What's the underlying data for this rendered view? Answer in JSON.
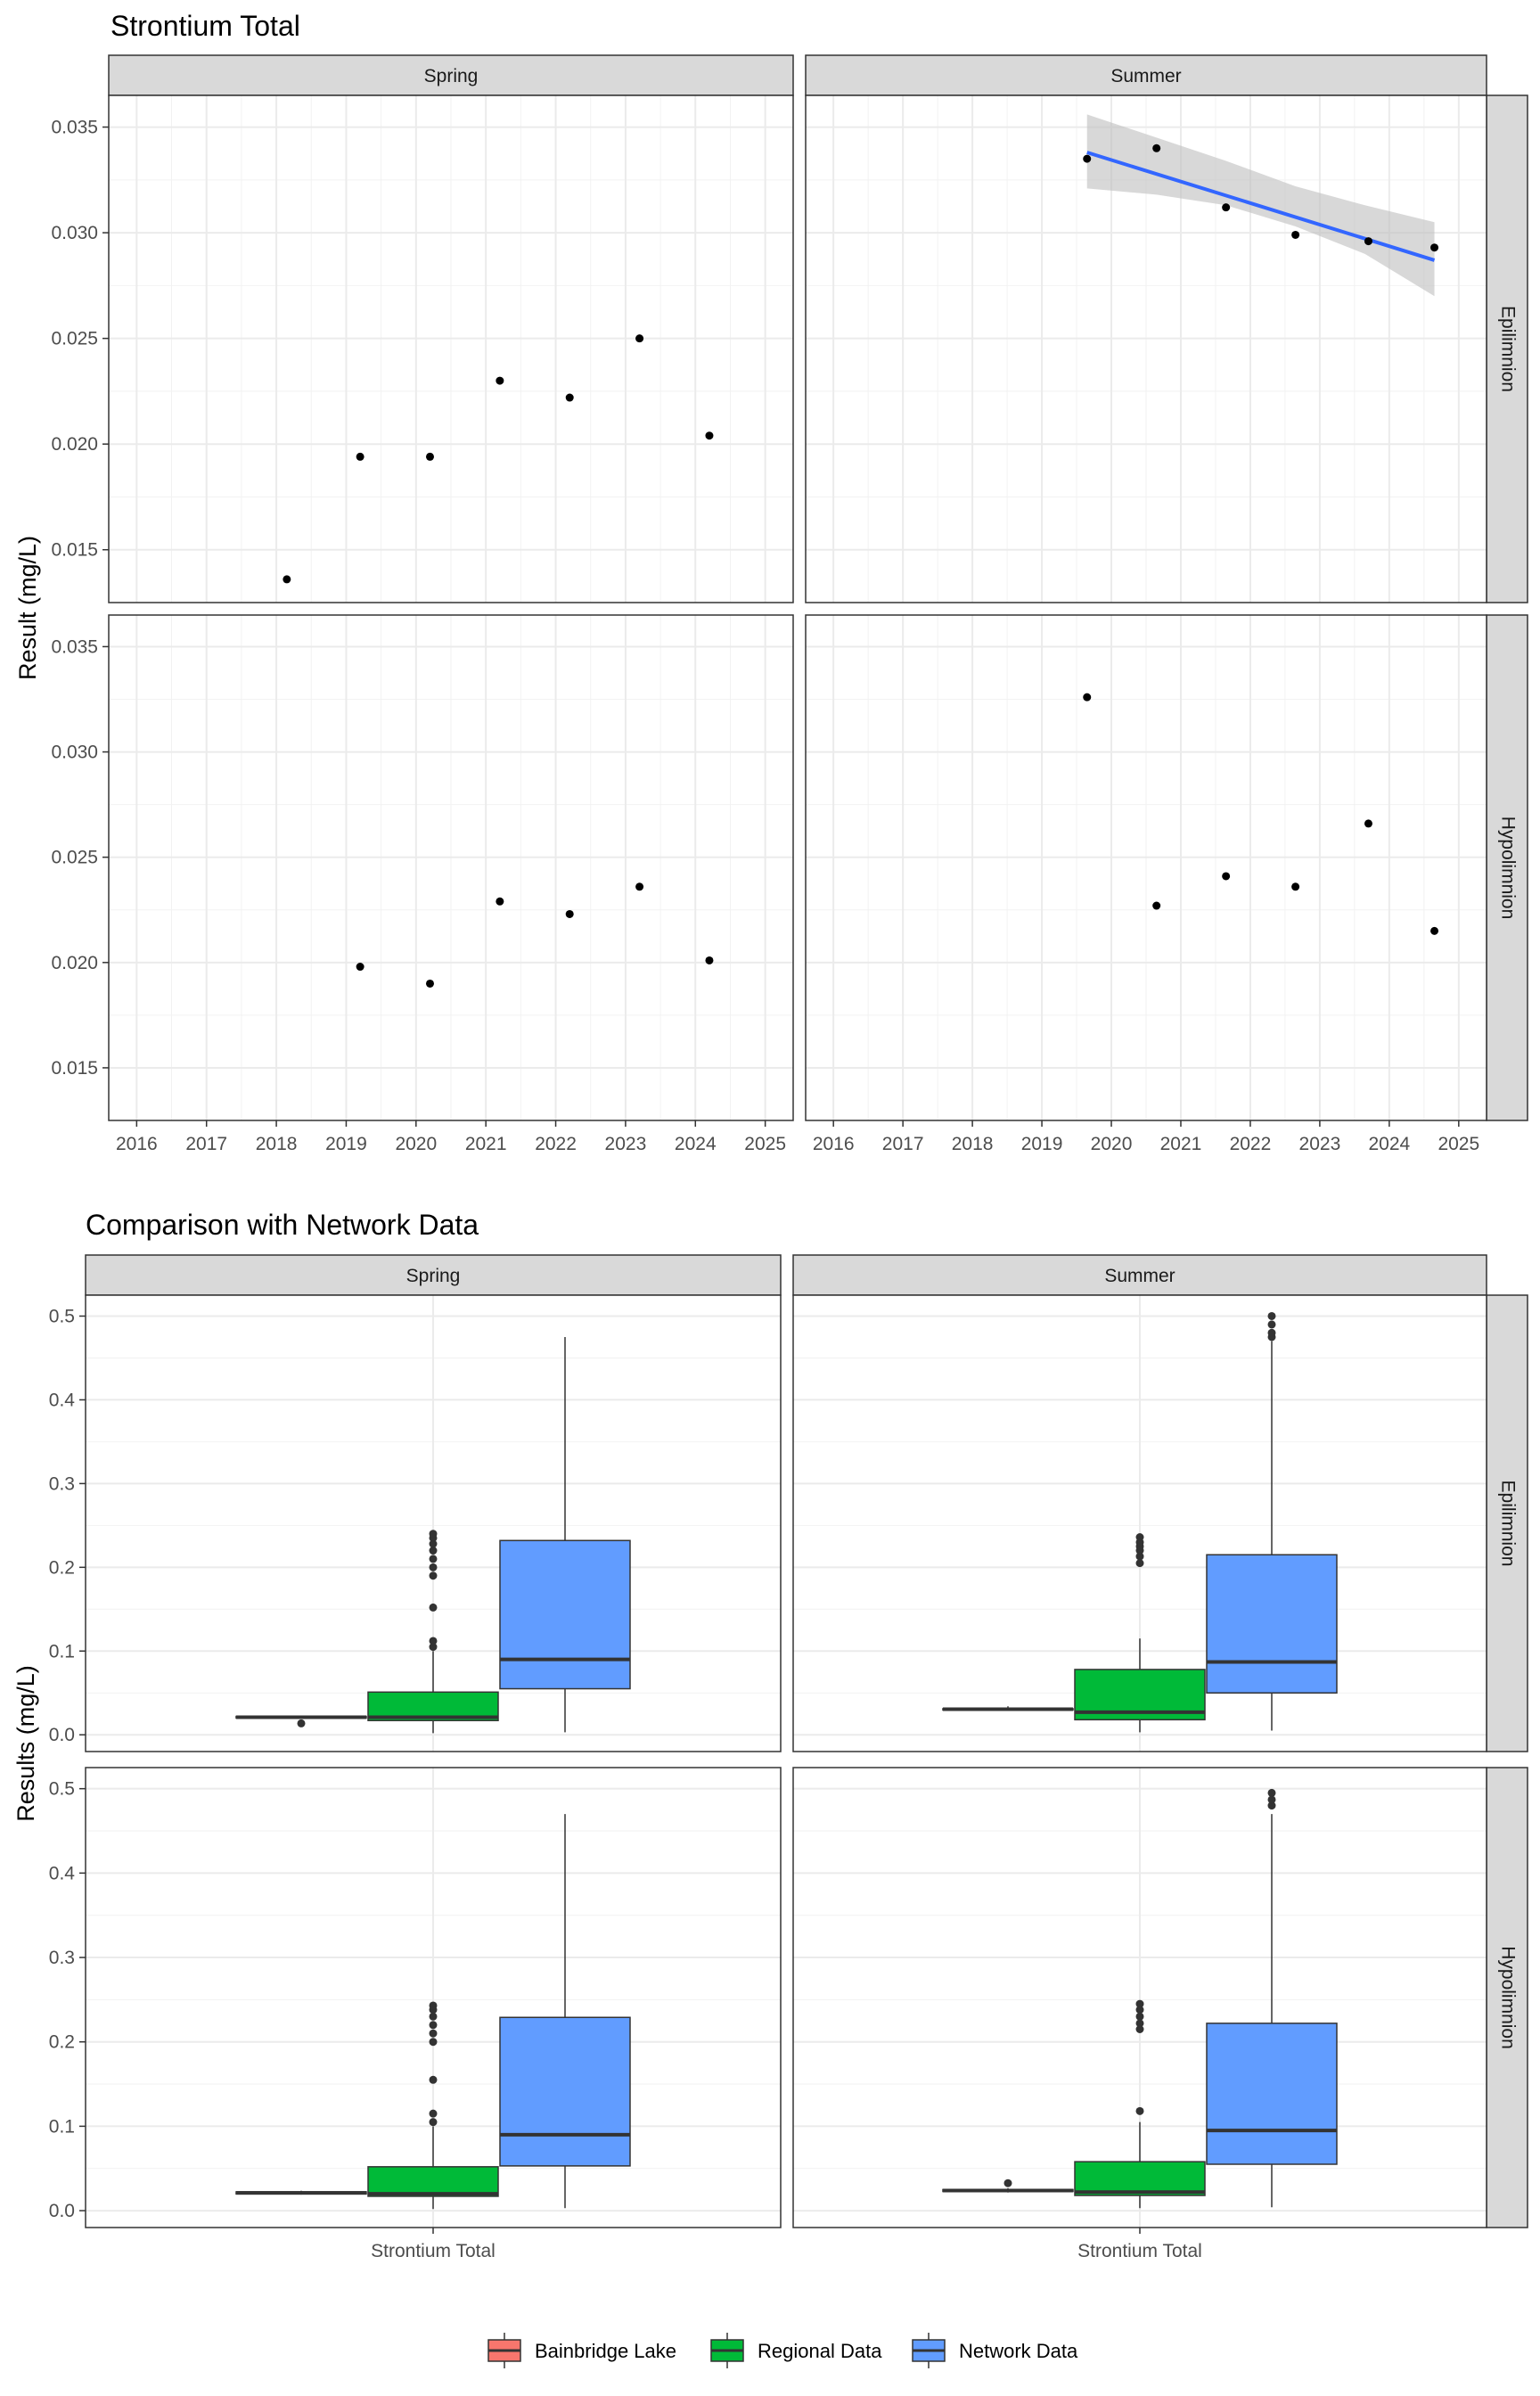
{
  "chart_data": [
    {
      "type": "scatter",
      "title": "Strontium Total",
      "ylabel": "Result (mg/L)",
      "xlabel": "",
      "columns": [
        "Spring",
        "Summer"
      ],
      "rows": [
        "Epilimnion",
        "Hypolimnion"
      ],
      "x_ticks": [
        "2016",
        "2017",
        "2018",
        "2019",
        "2020",
        "2021",
        "2022",
        "2023",
        "2024",
        "2025"
      ],
      "y_ticks": [
        "0.015",
        "0.020",
        "0.025",
        "0.030",
        "0.035"
      ],
      "xlim": [
        2015.6,
        2025.4
      ],
      "ylim": [
        0.0125,
        0.0365
      ],
      "grid": true,
      "panels": [
        {
          "column": "Spring",
          "row": "Epilimnion",
          "points": [
            [
              2018.15,
              0.0136
            ],
            [
              2019.2,
              0.0194
            ],
            [
              2020.2,
              0.0194
            ],
            [
              2021.2,
              0.023
            ],
            [
              2022.2,
              0.0222
            ],
            [
              2023.2,
              0.025
            ],
            [
              2024.2,
              0.0204
            ]
          ]
        },
        {
          "column": "Summer",
          "row": "Epilimnion",
          "points": [
            [
              2019.65,
              0.0335
            ],
            [
              2020.65,
              0.034
            ],
            [
              2021.65,
              0.0312
            ],
            [
              2022.65,
              0.0299
            ],
            [
              2023.7,
              0.0296
            ],
            [
              2024.65,
              0.0293
            ]
          ],
          "trend": {
            "x": [
              2019.65,
              2024.65
            ],
            "y": [
              0.0338,
              0.0287
            ],
            "ci_upper": [
              [
                2019.65,
                0.0356
              ],
              [
                2020.65,
                0.0345
              ],
              [
                2021.65,
                0.0334
              ],
              [
                2022.65,
                0.0322
              ],
              [
                2023.65,
                0.0313
              ],
              [
                2024.65,
                0.0305
              ]
            ],
            "ci_lower": [
              [
                2019.65,
                0.0321
              ],
              [
                2020.65,
                0.0318
              ],
              [
                2021.65,
                0.0313
              ],
              [
                2022.65,
                0.0303
              ],
              [
                2023.65,
                0.029
              ],
              [
                2024.65,
                0.027
              ]
            ],
            "color": "#3366FF",
            "band_color": "#BEBEBE"
          }
        },
        {
          "column": "Spring",
          "row": "Hypolimnion",
          "points": [
            [
              2019.2,
              0.0198
            ],
            [
              2020.2,
              0.019
            ],
            [
              2021.2,
              0.0229
            ],
            [
              2022.2,
              0.0223
            ],
            [
              2023.2,
              0.0236
            ],
            [
              2024.2,
              0.0201
            ]
          ]
        },
        {
          "column": "Summer",
          "row": "Hypolimnion",
          "points": [
            [
              2019.65,
              0.0326
            ],
            [
              2020.65,
              0.0227
            ],
            [
              2021.65,
              0.0241
            ],
            [
              2022.65,
              0.0236
            ],
            [
              2023.7,
              0.0266
            ],
            [
              2024.65,
              0.0215
            ]
          ]
        }
      ]
    },
    {
      "type": "box",
      "title": "Comparison with Network Data",
      "ylabel": "Results (mg/L)",
      "columns": [
        "Spring",
        "Summer"
      ],
      "rows": [
        "Epilimnion",
        "Hypolimnion"
      ],
      "category": "Strontium Total",
      "y_ticks": [
        "0.0",
        "0.1",
        "0.2",
        "0.3",
        "0.4",
        "0.5"
      ],
      "ylim": [
        -0.02,
        0.525
      ],
      "grid": true,
      "legend": {
        "position": "bottom",
        "entries": [
          {
            "label": "Bainbridge Lake",
            "color": "#F8766D"
          },
          {
            "label": "Regional Data",
            "color": "#00BA38"
          },
          {
            "label": "Network Data",
            "color": "#619CFF"
          }
        ]
      },
      "panels": [
        {
          "column": "Spring",
          "row": "Epilimnion",
          "boxes": [
            {
              "series": "Bainbridge Lake",
              "whisker_low": 0.02,
              "q1": 0.02,
              "median": 0.021,
              "q3": 0.022,
              "whisker_high": 0.023,
              "outliers": [
                0.0136
              ]
            },
            {
              "series": "Regional Data",
              "whisker_low": 0.002,
              "q1": 0.017,
              "median": 0.021,
              "q3": 0.051,
              "whisker_high": 0.1,
              "outliers": [
                0.105,
                0.112,
                0.152,
                0.19,
                0.2,
                0.21,
                0.22,
                0.228,
                0.235,
                0.24
              ]
            },
            {
              "series": "Network Data",
              "whisker_low": 0.003,
              "q1": 0.055,
              "median": 0.09,
              "q3": 0.232,
              "whisker_high": 0.475,
              "outliers": []
            }
          ]
        },
        {
          "column": "Summer",
          "row": "Epilimnion",
          "boxes": [
            {
              "series": "Bainbridge Lake",
              "whisker_low": 0.0293,
              "q1": 0.0296,
              "median": 0.0306,
              "q3": 0.0312,
              "whisker_high": 0.034,
              "outliers": []
            },
            {
              "series": "Regional Data",
              "whisker_low": 0.003,
              "q1": 0.018,
              "median": 0.027,
              "q3": 0.078,
              "whisker_high": 0.115,
              "outliers": [
                0.205,
                0.213,
                0.22,
                0.225,
                0.23,
                0.236
              ]
            },
            {
              "series": "Network Data",
              "whisker_low": 0.005,
              "q1": 0.05,
              "median": 0.087,
              "q3": 0.215,
              "whisker_high": 0.47,
              "outliers": [
                0.475,
                0.48,
                0.49,
                0.5
              ]
            }
          ]
        },
        {
          "column": "Spring",
          "row": "Hypolimnion",
          "boxes": [
            {
              "series": "Bainbridge Lake",
              "whisker_low": 0.019,
              "q1": 0.0198,
              "median": 0.021,
              "q3": 0.0223,
              "whisker_high": 0.0236,
              "outliers": []
            },
            {
              "series": "Regional Data",
              "whisker_low": 0.002,
              "q1": 0.017,
              "median": 0.02,
              "q3": 0.052,
              "whisker_high": 0.1,
              "outliers": [
                0.105,
                0.115,
                0.155,
                0.2,
                0.21,
                0.22,
                0.23,
                0.238,
                0.243
              ]
            },
            {
              "series": "Network Data",
              "whisker_low": 0.003,
              "q1": 0.053,
              "median": 0.09,
              "q3": 0.229,
              "whisker_high": 0.47,
              "outliers": []
            }
          ]
        },
        {
          "column": "Summer",
          "row": "Hypolimnion",
          "boxes": [
            {
              "series": "Bainbridge Lake",
              "whisker_low": 0.0215,
              "q1": 0.0227,
              "median": 0.0238,
              "q3": 0.025,
              "whisker_high": 0.0266,
              "outliers": [
                0.0326
              ]
            },
            {
              "series": "Regional Data",
              "whisker_low": 0.003,
              "q1": 0.018,
              "median": 0.022,
              "q3": 0.058,
              "whisker_high": 0.105,
              "outliers": [
                0.118,
                0.215,
                0.222,
                0.23,
                0.238,
                0.245
              ]
            },
            {
              "series": "Network Data",
              "whisker_low": 0.004,
              "q1": 0.055,
              "median": 0.095,
              "q3": 0.222,
              "whisker_high": 0.47,
              "outliers": [
                0.48,
                0.487,
                0.495
              ]
            }
          ]
        }
      ]
    }
  ]
}
